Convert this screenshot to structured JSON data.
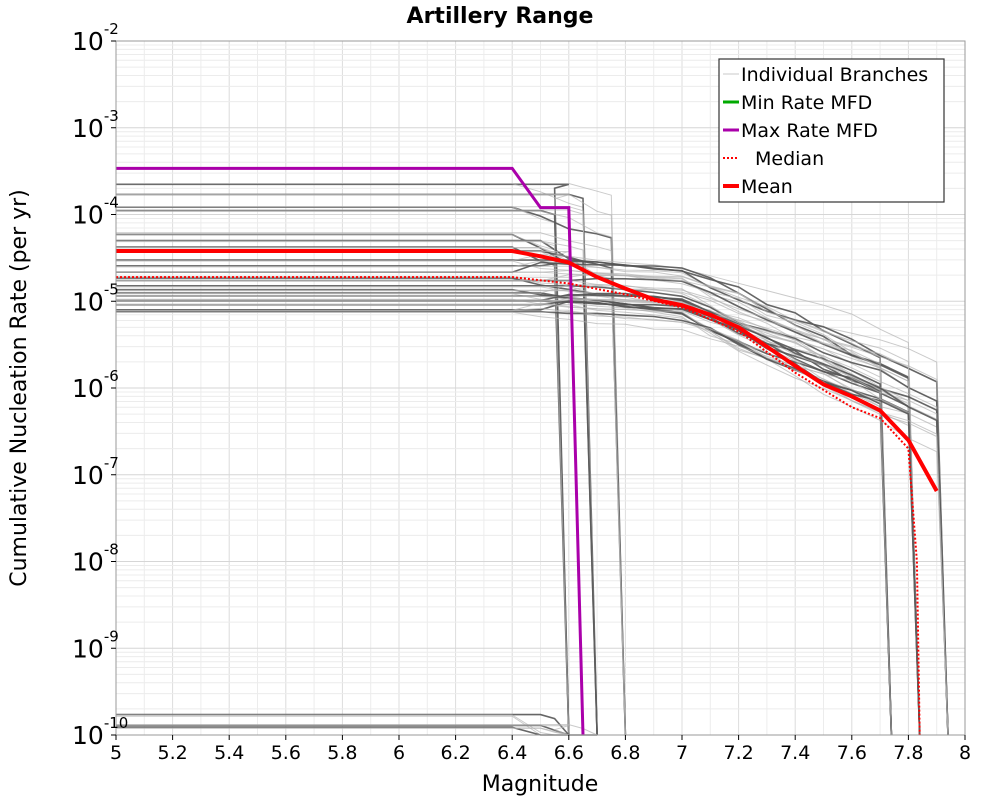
{
  "chart_data": {
    "type": "line",
    "title": "Artillery Range",
    "xlabel": "Magnitude",
    "ylabel": "Cumulative Nucleation Rate (per yr)",
    "xlim": [
      5,
      8
    ],
    "ylim": [
      1e-10,
      0.01
    ],
    "yscale": "log",
    "grid": true,
    "legend_position": "top-right",
    "x_ticks": [
      "5",
      "5.2",
      "5.4",
      "5.6",
      "5.8",
      "6",
      "6.2",
      "6.4",
      "6.6",
      "6.8",
      "7",
      "7.2",
      "7.4",
      "7.6",
      "7.8",
      "8"
    ],
    "y_ticks": [
      {
        "base": "10",
        "exp": "-10",
        "value": 1e-10
      },
      {
        "base": "10",
        "exp": "-9",
        "value": 1e-09
      },
      {
        "base": "10",
        "exp": "-8",
        "value": 1e-08
      },
      {
        "base": "10",
        "exp": "-7",
        "value": 1e-07
      },
      {
        "base": "10",
        "exp": "-6",
        "value": 1e-06
      },
      {
        "base": "10",
        "exp": "-5",
        "value": 1e-05
      },
      {
        "base": "10",
        "exp": "-4",
        "value": 0.0001
      },
      {
        "base": "10",
        "exp": "-3",
        "value": 0.001
      },
      {
        "base": "10",
        "exp": "-2",
        "value": 0.01
      }
    ],
    "legend": [
      {
        "label": "Individual Branches",
        "color": "#c8c8c8",
        "style": "thin"
      },
      {
        "label": "Min Rate MFD",
        "color": "#00aa00",
        "style": "solid"
      },
      {
        "label": "Max Rate MFD",
        "color": "#aa00aa",
        "style": "solid"
      },
      {
        "label": "Median",
        "color": "#ff0000",
        "style": "dotted"
      },
      {
        "label": "Mean",
        "color": "#ff0000",
        "style": "thick"
      }
    ],
    "colors": {
      "branches": "#555555",
      "branches_light": "#b4b4b4",
      "min": "#00aa00",
      "max": "#aa00aa",
      "median": "#ff0000",
      "mean": "#ff0000"
    },
    "series": [
      {
        "name": "Max Rate MFD",
        "x": [
          5.0,
          6.4,
          6.5,
          6.6,
          6.65
        ],
        "y": [
          0.00034,
          0.00034,
          0.00012,
          0.00012,
          1e-10
        ]
      },
      {
        "name": "Median",
        "x": [
          5.0,
          6.4,
          6.6,
          6.8,
          7.0,
          7.2,
          7.4,
          7.6,
          7.7,
          7.8,
          7.83,
          7.84
        ],
        "y": [
          1.9e-05,
          1.9e-05,
          1.6e-05,
          1.2e-05,
          8.5e-06,
          4.5e-06,
          1.5e-06,
          6e-07,
          4.5e-07,
          2e-07,
          1e-08,
          1e-10
        ]
      },
      {
        "name": "Mean",
        "x": [
          5.0,
          6.4,
          6.5,
          6.6,
          6.7,
          6.8,
          6.9,
          7.0,
          7.1,
          7.2,
          7.3,
          7.4,
          7.5,
          7.6,
          7.7,
          7.8,
          7.9
        ],
        "y": [
          3.8e-05,
          3.8e-05,
          3.3e-05,
          2.8e-05,
          1.9e-05,
          1.4e-05,
          1.05e-05,
          9e-06,
          7e-06,
          5e-06,
          3e-06,
          1.8e-06,
          1.1e-06,
          8e-07,
          5.5e-07,
          2.5e-07,
          6.5e-08
        ]
      }
    ],
    "branch_families": [
      {
        "levels": [
          0.00023,
          0.00017,
          0.00012,
          0.00011,
          6e-05,
          5e-05,
          4.2e-05,
          3.7e-05
        ],
        "drop_m": [
          6.6,
          6.7,
          6.8
        ],
        "tail": "steep"
      },
      {
        "levels": [
          3e-05,
          2.5e-05,
          2.2e-05,
          1.9e-05,
          1.7e-05,
          1.5e-05,
          1.35e-05,
          1.25e-05,
          1.15e-05,
          1.05e-05,
          1e-05,
          9e-06,
          8e-06,
          7.5e-06
        ],
        "drop_m": [
          7.74,
          7.84,
          7.94
        ],
        "tail": "gradual"
      },
      {
        "levels": [
          1.7e-10,
          1.3e-10,
          1.2e-10
        ],
        "drop_m": [
          6.6,
          6.7
        ],
        "tail": "low"
      }
    ]
  }
}
